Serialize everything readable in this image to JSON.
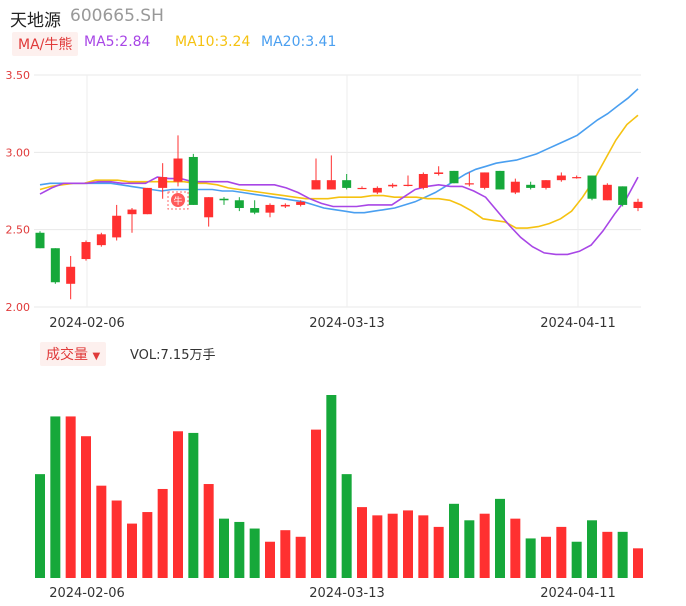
{
  "header": {
    "name": "天地源",
    "code": "600665.SH"
  },
  "legend": {
    "ma_tag": "MA/牛熊",
    "ma5": "MA5:2.84",
    "ma10": "MA10:3.24",
    "ma20": "MA20:3.41",
    "colors": {
      "ma5": "#a846e6",
      "ma10": "#f5c211",
      "ma20": "#4a9ff0",
      "up": "#ff3030",
      "down": "#16a83a"
    }
  },
  "volume": {
    "tag": "成交量",
    "label": "VOL:7.15万手"
  },
  "marker": {
    "label": "牛"
  },
  "chart_data": [
    {
      "type": "candlestick",
      "ylim": [
        2.0,
        3.5
      ],
      "yticks": [
        "3.50",
        "3.00",
        "2.50",
        "2.00"
      ],
      "xticks": [
        "2024-02-06",
        "2024-03-13",
        "2024-04-11"
      ],
      "candles": [
        {
          "o": 2.48,
          "h": 2.49,
          "l": 2.38,
          "c": 2.38
        },
        {
          "o": 2.38,
          "h": 2.38,
          "l": 2.15,
          "c": 2.16
        },
        {
          "o": 2.15,
          "h": 2.33,
          "l": 2.05,
          "c": 2.26
        },
        {
          "o": 2.31,
          "h": 2.43,
          "l": 2.3,
          "c": 2.42
        },
        {
          "o": 2.4,
          "h": 2.48,
          "l": 2.39,
          "c": 2.47
        },
        {
          "o": 2.45,
          "h": 2.66,
          "l": 2.43,
          "c": 2.59
        },
        {
          "o": 2.6,
          "h": 2.64,
          "l": 2.48,
          "c": 2.63
        },
        {
          "o": 2.6,
          "h": 2.77,
          "l": 2.6,
          "c": 2.77
        },
        {
          "o": 2.77,
          "h": 2.93,
          "l": 2.7,
          "c": 2.84
        },
        {
          "o": 2.81,
          "h": 3.11,
          "l": 2.78,
          "c": 2.96
        },
        {
          "o": 2.97,
          "h": 2.99,
          "l": 2.66,
          "c": 2.66
        },
        {
          "o": 2.58,
          "h": 2.71,
          "l": 2.52,
          "c": 2.71
        },
        {
          "o": 2.7,
          "h": 2.71,
          "l": 2.66,
          "c": 2.69
        },
        {
          "o": 2.69,
          "h": 2.71,
          "l": 2.62,
          "c": 2.64
        },
        {
          "o": 2.64,
          "h": 2.69,
          "l": 2.6,
          "c": 2.61
        },
        {
          "o": 2.61,
          "h": 2.67,
          "l": 2.58,
          "c": 2.66
        },
        {
          "o": 2.65,
          "h": 2.67,
          "l": 2.64,
          "c": 2.66
        },
        {
          "o": 2.66,
          "h": 2.69,
          "l": 2.65,
          "c": 2.68
        },
        {
          "o": 2.76,
          "h": 2.96,
          "l": 2.76,
          "c": 2.82
        },
        {
          "o": 2.76,
          "h": 2.98,
          "l": 2.76,
          "c": 2.82
        },
        {
          "o": 2.82,
          "h": 2.86,
          "l": 2.76,
          "c": 2.77
        },
        {
          "o": 2.77,
          "h": 2.78,
          "l": 2.77,
          "c": 2.77
        },
        {
          "o": 2.74,
          "h": 2.78,
          "l": 2.73,
          "c": 2.77
        },
        {
          "o": 2.78,
          "h": 2.8,
          "l": 2.77,
          "c": 2.79
        },
        {
          "o": 2.79,
          "h": 2.85,
          "l": 2.78,
          "c": 2.79
        },
        {
          "o": 2.77,
          "h": 2.87,
          "l": 2.76,
          "c": 2.86
        },
        {
          "o": 2.86,
          "h": 2.91,
          "l": 2.85,
          "c": 2.87
        },
        {
          "o": 2.88,
          "h": 2.88,
          "l": 2.8,
          "c": 2.8
        },
        {
          "o": 2.8,
          "h": 2.87,
          "l": 2.78,
          "c": 2.8
        },
        {
          "o": 2.77,
          "h": 2.87,
          "l": 2.76,
          "c": 2.87
        },
        {
          "o": 2.88,
          "h": 2.88,
          "l": 2.76,
          "c": 2.76
        },
        {
          "o": 2.74,
          "h": 2.83,
          "l": 2.73,
          "c": 2.81
        },
        {
          "o": 2.79,
          "h": 2.81,
          "l": 2.76,
          "c": 2.77
        },
        {
          "o": 2.77,
          "h": 2.82,
          "l": 2.76,
          "c": 2.82
        },
        {
          "o": 2.82,
          "h": 2.87,
          "l": 2.81,
          "c": 2.85
        },
        {
          "o": 2.84,
          "h": 2.85,
          "l": 2.83,
          "c": 2.84
        },
        {
          "o": 2.85,
          "h": 2.85,
          "l": 2.69,
          "c": 2.7
        },
        {
          "o": 2.69,
          "h": 2.8,
          "l": 2.69,
          "c": 2.79
        },
        {
          "o": 2.78,
          "h": 2.78,
          "l": 2.65,
          "c": 2.66
        },
        {
          "o": 2.64,
          "h": 2.7,
          "l": 2.62,
          "c": 2.68
        }
      ],
      "ma5": [
        2.73,
        2.77,
        2.8,
        2.8,
        2.8,
        2.81,
        2.81,
        2.8,
        2.8,
        2.8,
        2.84,
        2.83,
        2.83,
        2.81,
        2.81,
        2.81,
        2.81,
        2.79,
        2.79,
        2.79,
        2.79,
        2.77,
        2.74,
        2.7,
        2.67,
        2.65,
        2.65,
        2.65,
        2.66,
        2.66,
        2.66,
        2.71,
        2.76,
        2.78,
        2.79,
        2.78,
        2.78,
        2.75,
        2.71,
        2.62,
        2.53,
        2.45,
        2.39,
        2.35,
        2.34,
        2.34,
        2.36,
        2.4,
        2.49,
        2.6,
        2.7,
        2.84
      ],
      "ma10": [
        2.76,
        2.78,
        2.79,
        2.8,
        2.8,
        2.82,
        2.82,
        2.82,
        2.81,
        2.81,
        2.81,
        2.81,
        2.81,
        2.81,
        2.8,
        2.8,
        2.79,
        2.77,
        2.76,
        2.75,
        2.74,
        2.73,
        2.72,
        2.71,
        2.7,
        2.7,
        2.7,
        2.71,
        2.71,
        2.71,
        2.72,
        2.72,
        2.71,
        2.71,
        2.71,
        2.7,
        2.7,
        2.69,
        2.66,
        2.62,
        2.57,
        2.56,
        2.55,
        2.51,
        2.51,
        2.52,
        2.54,
        2.57,
        2.62,
        2.71,
        2.82,
        2.95,
        3.08,
        3.18,
        3.24
      ],
      "ma20": [
        2.79,
        2.8,
        2.8,
        2.8,
        2.8,
        2.8,
        2.8,
        2.8,
        2.79,
        2.78,
        2.77,
        2.76,
        2.75,
        2.76,
        2.76,
        2.76,
        2.76,
        2.76,
        2.75,
        2.75,
        2.74,
        2.73,
        2.72,
        2.71,
        2.7,
        2.69,
        2.68,
        2.66,
        2.64,
        2.63,
        2.62,
        2.61,
        2.61,
        2.62,
        2.63,
        2.64,
        2.66,
        2.68,
        2.71,
        2.74,
        2.78,
        2.82,
        2.86,
        2.89,
        2.91,
        2.93,
        2.94,
        2.95,
        2.97,
        2.99,
        3.02,
        3.05,
        3.08,
        3.11,
        3.16,
        3.21,
        3.25,
        3.3,
        3.35,
        3.41
      ]
    },
    {
      "type": "bar",
      "name": "成交量",
      "xticks": [
        "2024-02-06",
        "2024-03-13",
        "2024-04-11"
      ],
      "values": [
        6.3,
        9.8,
        9.8,
        8.6,
        5.6,
        4.7,
        3.3,
        4.0,
        5.4,
        8.9,
        8.8,
        5.7,
        3.6,
        3.4,
        3.0,
        2.2,
        2.9,
        2.5,
        9.0,
        11.1,
        6.3,
        4.3,
        3.8,
        3.9,
        4.1,
        3.8,
        3.1,
        4.5,
        3.5,
        3.9,
        4.8,
        3.6,
        2.4,
        2.5,
        3.1,
        2.2,
        3.5,
        2.8,
        2.8,
        1.8
      ],
      "colors": [
        "down",
        "down",
        "up",
        "up",
        "up",
        "up",
        "up",
        "up",
        "up",
        "up",
        "down",
        "up",
        "down",
        "down",
        "down",
        "up",
        "up",
        "up",
        "up",
        "down",
        "down",
        "up",
        "up",
        "up",
        "up",
        "up",
        "up",
        "down",
        "down",
        "up",
        "down",
        "up",
        "down",
        "up",
        "up",
        "down",
        "down",
        "up",
        "down",
        "up"
      ]
    }
  ]
}
